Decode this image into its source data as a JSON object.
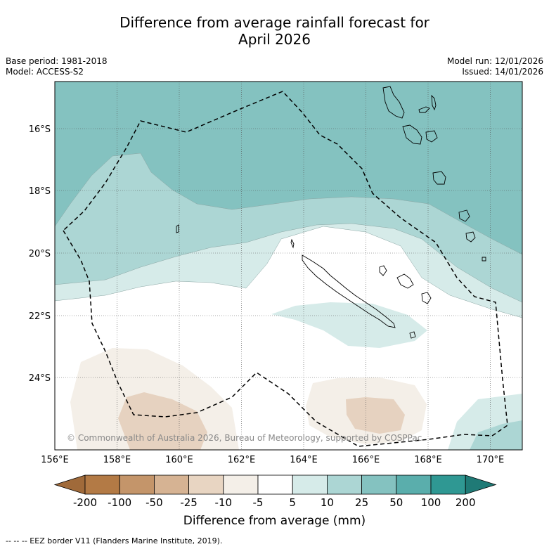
{
  "title_line1": "Difference from average rainfall forecast for",
  "title_line2": "April 2026",
  "meta_left": [
    "Base period: 1981-2018",
    "Model: ACCESS-S2"
  ],
  "meta_right": [
    "Model run: 12/01/2026",
    "Issued: 14/01/2026"
  ],
  "lat_labels": [
    "16°S",
    "18°S",
    "20°S",
    "22°S",
    "24°S"
  ],
  "lon_labels": [
    "156°E",
    "158°E",
    "160°E",
    "162°E",
    "164°E",
    "166°E",
    "168°E",
    "170°E"
  ],
  "copyright": "© Commonwealth of Australia 2026, Bureau of Meteorology, supported by COSPPac",
  "colorbar": {
    "ticks": [
      "-200",
      "-100",
      "-50",
      "-25",
      "-10",
      "-5",
      "5",
      "10",
      "25",
      "50",
      "100",
      "200"
    ],
    "colors": [
      "#a06a3a",
      "#b37a45",
      "#c4956a",
      "#d6b393",
      "#e8d5c2",
      "#f4efe8",
      "#ffffff",
      "#d6ebe9",
      "#acd6d4",
      "#84c2c0",
      "#5aaeac",
      "#2f9893",
      "#1f7a76"
    ],
    "label": "Difference from average (mm)"
  },
  "footnote": "-- -- -- EEZ border V11 (Flanders Marine Institute, 2019)."
}
